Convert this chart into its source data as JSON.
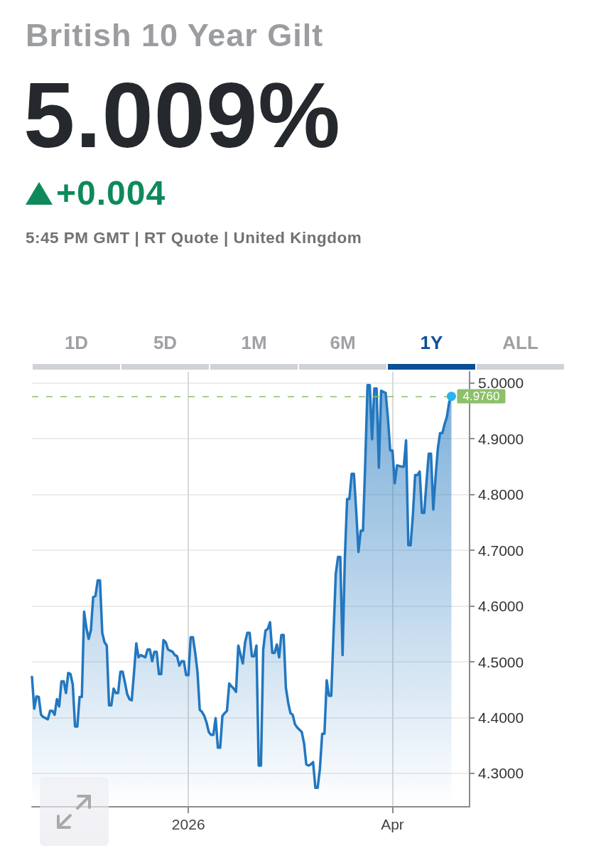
{
  "chart_data": {
    "type": "area",
    "title": "British 10 Year Gilt",
    "subtitle": "5:45 PM GMT | RT Quote | United Kingdom",
    "annotations": [
      "5.009%",
      "+0.004",
      "1D",
      "5D",
      "1M",
      "6M",
      "1Y",
      "ALL"
    ],
    "x": [
      "2025-10-24",
      "2025-10-25",
      "2025-10-26",
      "2025-10-27",
      "2025-10-28",
      "2025-10-29",
      "2025-10-31",
      "2025-11-01",
      "2025-11-02",
      "2025-11-03",
      "2025-11-04",
      "2025-11-05",
      "2025-11-06",
      "2025-11-07",
      "2025-11-08",
      "2025-11-09",
      "2025-11-10",
      "2025-11-11",
      "2025-11-12",
      "2025-11-13",
      "2025-11-14",
      "2025-11-15",
      "2025-11-16",
      "2025-11-17",
      "2025-11-18",
      "2025-11-19",
      "2025-11-20",
      "2025-11-21",
      "2025-11-22",
      "2025-11-23",
      "2025-11-24",
      "2025-11-25",
      "2025-11-26",
      "2025-11-27",
      "2025-11-28",
      "2025-11-29",
      "2025-11-30",
      "2025-12-01",
      "2025-12-02",
      "2025-12-03",
      "2025-12-04",
      "2025-12-05",
      "2025-12-06",
      "2025-12-07",
      "2025-12-08",
      "2025-12-09",
      "2025-12-10",
      "2025-12-11",
      "2025-12-12",
      "2025-12-13",
      "2025-12-14",
      "2025-12-15",
      "2025-12-16",
      "2025-12-17",
      "2025-12-18",
      "2025-12-19",
      "2025-12-20",
      "2025-12-21",
      "2025-12-22",
      "2025-12-23",
      "2025-12-24",
      "2025-12-25",
      "2025-12-26",
      "2025-12-27",
      "2025-12-28",
      "2025-12-29",
      "2025-12-30",
      "2025-12-31",
      "2026-01-01",
      "2026-01-02",
      "2026-01-03",
      "2026-01-04",
      "2026-01-05",
      "2026-01-06",
      "2026-01-07",
      "2026-01-08",
      "2026-01-09",
      "2026-01-10",
      "2026-01-11",
      "2026-01-12",
      "2026-01-13",
      "2026-01-14",
      "2026-01-15",
      "2026-01-16",
      "2026-01-17",
      "2026-01-18",
      "2026-01-19",
      "2026-01-20",
      "2026-01-21",
      "2026-01-22",
      "2026-01-23",
      "2026-01-25",
      "2026-01-26",
      "2026-01-27",
      "2026-01-28",
      "2026-01-29",
      "2026-01-30",
      "2026-01-31",
      "2026-02-01",
      "2026-02-02",
      "2026-02-03",
      "2026-02-04",
      "2026-02-05",
      "2026-02-06",
      "2026-02-07",
      "2026-02-08",
      "2026-02-09",
      "2026-02-10",
      "2026-02-11",
      "2026-02-12",
      "2026-02-13",
      "2026-02-14",
      "2026-02-15",
      "2026-02-16",
      "2026-02-17",
      "2026-02-18",
      "2026-02-20",
      "2026-02-21",
      "2026-02-22",
      "2026-02-23",
      "2026-02-24",
      "2026-02-25",
      "2026-02-26",
      "2026-02-27",
      "2026-02-28",
      "2026-03-01",
      "2026-03-02",
      "2026-03-03",
      "2026-03-04",
      "2026-03-05",
      "2026-03-06",
      "2026-03-07",
      "2026-03-08",
      "2026-03-09",
      "2026-03-10",
      "2026-03-11",
      "2026-03-12",
      "2026-03-13",
      "2026-03-14",
      "2026-03-15",
      "2026-03-16",
      "2026-03-17",
      "2026-03-18",
      "2026-03-19",
      "2026-03-20",
      "2026-03-21",
      "2026-03-22",
      "2026-03-23",
      "2026-03-24",
      "2026-03-25",
      "2026-03-26",
      "2026-03-27",
      "2026-03-28",
      "2026-03-29",
      "2026-03-30",
      "2026-03-31",
      "2026-04-01",
      "2026-04-02",
      "2026-04-03",
      "2026-04-05",
      "2026-04-06",
      "2026-04-07",
      "2026-04-08",
      "2026-04-09",
      "2026-04-10",
      "2026-04-11",
      "2026-04-12",
      "2026-04-13",
      "2026-04-14",
      "2026-04-15",
      "2026-04-16",
      "2026-04-17",
      "2026-04-18",
      "2026-04-19",
      "2026-04-20",
      "2026-04-21",
      "2026-04-22",
      "2026-04-23",
      "2026-04-24",
      "2026-04-25",
      "2026-04-26",
      "2026-04-27"
    ],
    "series": [
      {
        "color": "#2277bf",
        "values": [
          4.473,
          4.416,
          4.438,
          4.437,
          4.405,
          4.401,
          4.397,
          4.412,
          4.412,
          4.405,
          4.433,
          4.42,
          4.465,
          4.465,
          4.444,
          4.48,
          4.478,
          4.459,
          4.384,
          4.384,
          4.437,
          4.437,
          4.59,
          4.561,
          4.541,
          4.557,
          4.616,
          4.618,
          4.646,
          4.646,
          4.552,
          4.535,
          4.529,
          4.422,
          4.422,
          4.452,
          4.444,
          4.444,
          4.482,
          4.482,
          4.463,
          4.442,
          4.433,
          4.431,
          4.48,
          4.533,
          4.508,
          4.512,
          4.51,
          4.508,
          4.522,
          4.522,
          4.501,
          4.518,
          4.518,
          4.478,
          4.478,
          4.539,
          4.535,
          4.522,
          4.52,
          4.518,
          4.512,
          4.51,
          4.493,
          4.501,
          4.501,
          4.476,
          4.476,
          4.544,
          4.544,
          4.516,
          4.482,
          4.414,
          4.41,
          4.403,
          4.391,
          4.374,
          4.369,
          4.369,
          4.399,
          4.346,
          4.346,
          4.403,
          4.408,
          4.412,
          4.461,
          4.456,
          4.452,
          4.446,
          4.529,
          4.497,
          4.535,
          4.552,
          4.552,
          4.51,
          4.51,
          4.529,
          4.314,
          4.314,
          4.522,
          4.556,
          4.559,
          4.571,
          4.516,
          4.516,
          4.531,
          4.508,
          4.548,
          4.548,
          4.453,
          4.427,
          4.408,
          4.405,
          4.388,
          4.382,
          4.374,
          4.354,
          4.316,
          4.314,
          4.316,
          4.32,
          4.274,
          4.274,
          4.308,
          4.371,
          4.371,
          4.467,
          4.439,
          4.439,
          4.55,
          4.658,
          4.688,
          4.688,
          4.512,
          4.686,
          4.792,
          4.792,
          4.837,
          4.837,
          4.771,
          4.697,
          4.735,
          4.735,
          4.857,
          4.996,
          4.996,
          4.899,
          4.99,
          4.99,
          4.848,
          4.986,
          4.984,
          4.982,
          4.937,
          4.879,
          4.879,
          4.82,
          4.852,
          4.85,
          4.85,
          4.897,
          4.709,
          4.709,
          4.763,
          4.835,
          4.835,
          4.841,
          4.767,
          4.767,
          4.822,
          4.873,
          4.873,
          4.773,
          4.831,
          4.882,
          4.91,
          4.91,
          4.926,
          4.939,
          4.965,
          4.976
        ]
      }
    ],
    "xlim": [
      "2025-10-24",
      "2026-05-05"
    ],
    "xticks": [
      {
        "value": "2026-01-01",
        "label": "2026"
      },
      {
        "value": "2026-04-01",
        "label": "Apr"
      }
    ],
    "ylim": [
      4.24,
      5.02
    ],
    "yticks": [
      {
        "value": 4.3,
        "label": "4.3000"
      },
      {
        "value": 4.4,
        "label": "4.4000"
      },
      {
        "value": 4.5,
        "label": "4.5000"
      },
      {
        "value": 4.6,
        "label": "4.6000"
      },
      {
        "value": 4.7,
        "label": "4.7000"
      },
      {
        "value": 4.8,
        "label": "4.8000"
      },
      {
        "value": 4.9,
        "label": "4.9000"
      },
      {
        "value": 5.0,
        "label": "5.0000"
      }
    ],
    "grid": true,
    "marker": "none",
    "line_style": "solid",
    "ref_lines": [
      {
        "axis": "y",
        "value": 4.976,
        "label": "4.9760",
        "color": "#8cc06a",
        "line_style": "dashed"
      }
    ]
  }
}
